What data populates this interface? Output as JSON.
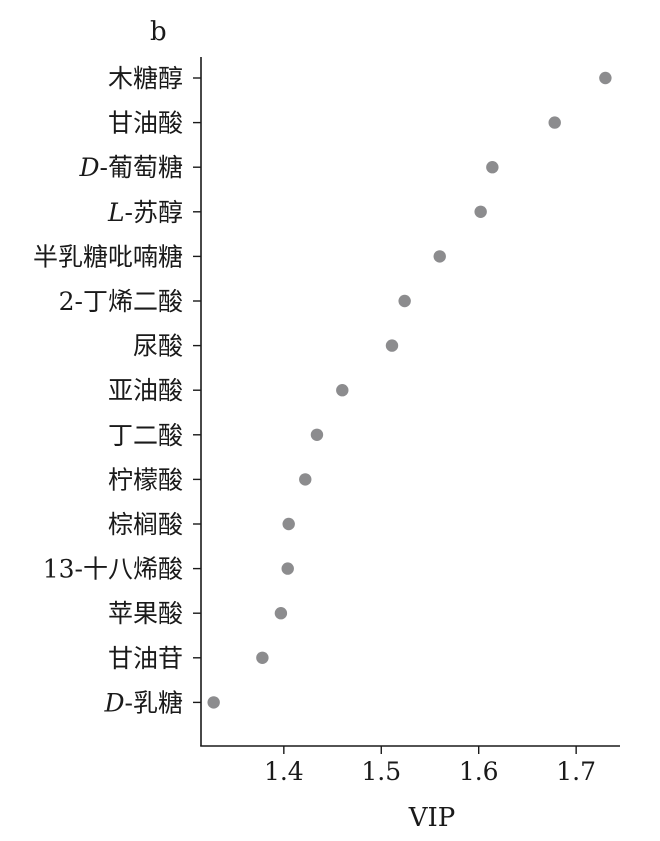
{
  "chart_data": {
    "type": "scatter",
    "panel_label": "b",
    "xlabel": "VIP",
    "xlim": [
      1.315,
      1.745
    ],
    "xticks": [
      1.4,
      1.5,
      1.6,
      1.7
    ],
    "xtick_labels": [
      "1.4",
      "1.5",
      "1.6",
      "1.7"
    ],
    "grid": false,
    "point_color": "#8c8c8e",
    "categories": [
      {
        "prefix": "",
        "label": "木糖醇",
        "value": 1.73
      },
      {
        "prefix": "",
        "label": "甘油酸",
        "value": 1.678
      },
      {
        "prefix": "D",
        "label": "-葡萄糖",
        "value": 1.614
      },
      {
        "prefix": "L",
        "label": "-苏醇",
        "value": 1.602
      },
      {
        "prefix": "",
        "label": "半乳糖吡喃糖",
        "value": 1.56
      },
      {
        "prefix": "",
        "label": "2-丁烯二酸",
        "value": 1.524
      },
      {
        "prefix": "",
        "label": "尿酸",
        "value": 1.511
      },
      {
        "prefix": "",
        "label": "亚油酸",
        "value": 1.46
      },
      {
        "prefix": "",
        "label": "丁二酸",
        "value": 1.434
      },
      {
        "prefix": "",
        "label": "柠檬酸",
        "value": 1.422
      },
      {
        "prefix": "",
        "label": "棕榈酸",
        "value": 1.405
      },
      {
        "prefix": "",
        "label": "13-十八烯酸",
        "value": 1.404
      },
      {
        "prefix": "",
        "label": "苹果酸",
        "value": 1.397
      },
      {
        "prefix": "",
        "label": "甘油苷",
        "value": 1.378
      },
      {
        "prefix": "D",
        "label": "-乳糖",
        "value": 1.328
      }
    ]
  }
}
